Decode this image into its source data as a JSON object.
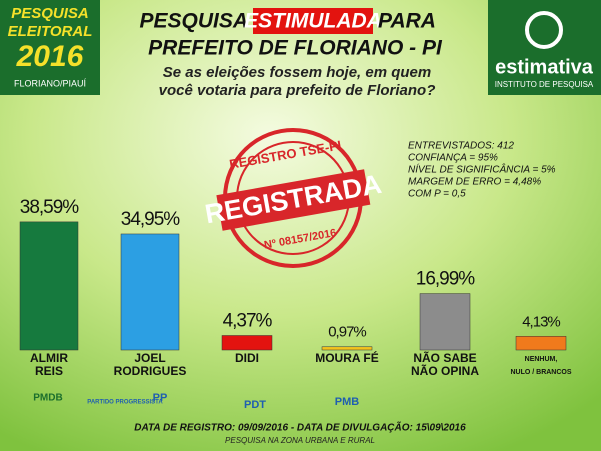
{
  "header": {
    "badge": [
      "PESQUISA",
      "ELEITORAL",
      "2016",
      "FLORIANO/PIAUÍ"
    ],
    "title_parts": [
      "PESQUISA",
      "ESTIMULADA",
      "PARA"
    ],
    "title_line2": "PREFEITO DE FLORIANO - PI",
    "question": [
      "Se as eleições fossem hoje, em quem",
      "você votaria para prefeito de Floriano?"
    ],
    "brand": "estimativa",
    "brand_sub": "INSTITUTO DE PESQUISA"
  },
  "stamp": {
    "top": "REGISTRO TSE-PI",
    "main": "REGISTRADA",
    "bottom": "Nº 08157/2016"
  },
  "stats": [
    "ENTREVISTADOS: 412",
    "CONFIANÇA = 95%",
    "NÍVEL DE SIGNIFICÂNCIA = 5%",
    "MARGEM DE ERRO = 4,48%",
    "COM P = 0,5"
  ],
  "chart_data": {
    "type": "bar",
    "categories": [
      [
        "ALMIR",
        "REIS"
      ],
      [
        "JOEL",
        "RODRIGUES"
      ],
      [
        "DIDI"
      ],
      [
        "MOURA FÉ"
      ],
      [
        "NÃO SABE",
        "NÃO OPINA"
      ],
      [
        "NENHUM,",
        "NULO / BRANCOS"
      ]
    ],
    "values": [
      38.59,
      34.95,
      4.37,
      0.97,
      16.99,
      4.13
    ],
    "value_labels": [
      "38,59%",
      "34,95%",
      "4,37%",
      "0,97%",
      "16,99%",
      "4,13%"
    ],
    "colors": [
      "#167a3e",
      "#2c9fe3",
      "#e3130f",
      "#f2c21d",
      "#8c8c8c",
      "#f07a1c"
    ]
  },
  "parties": [
    "PMDB",
    "PARTIDO PROGRESSISTA",
    "PP",
    "PDT",
    "PMB"
  ],
  "footer": [
    "DATA DE REGISTRO: 09/09/2016 - DATA DE DIVULGAÇÃO: 15\\09\\2016",
    "PESQUISA NA ZONA URBANA E RURAL"
  ]
}
